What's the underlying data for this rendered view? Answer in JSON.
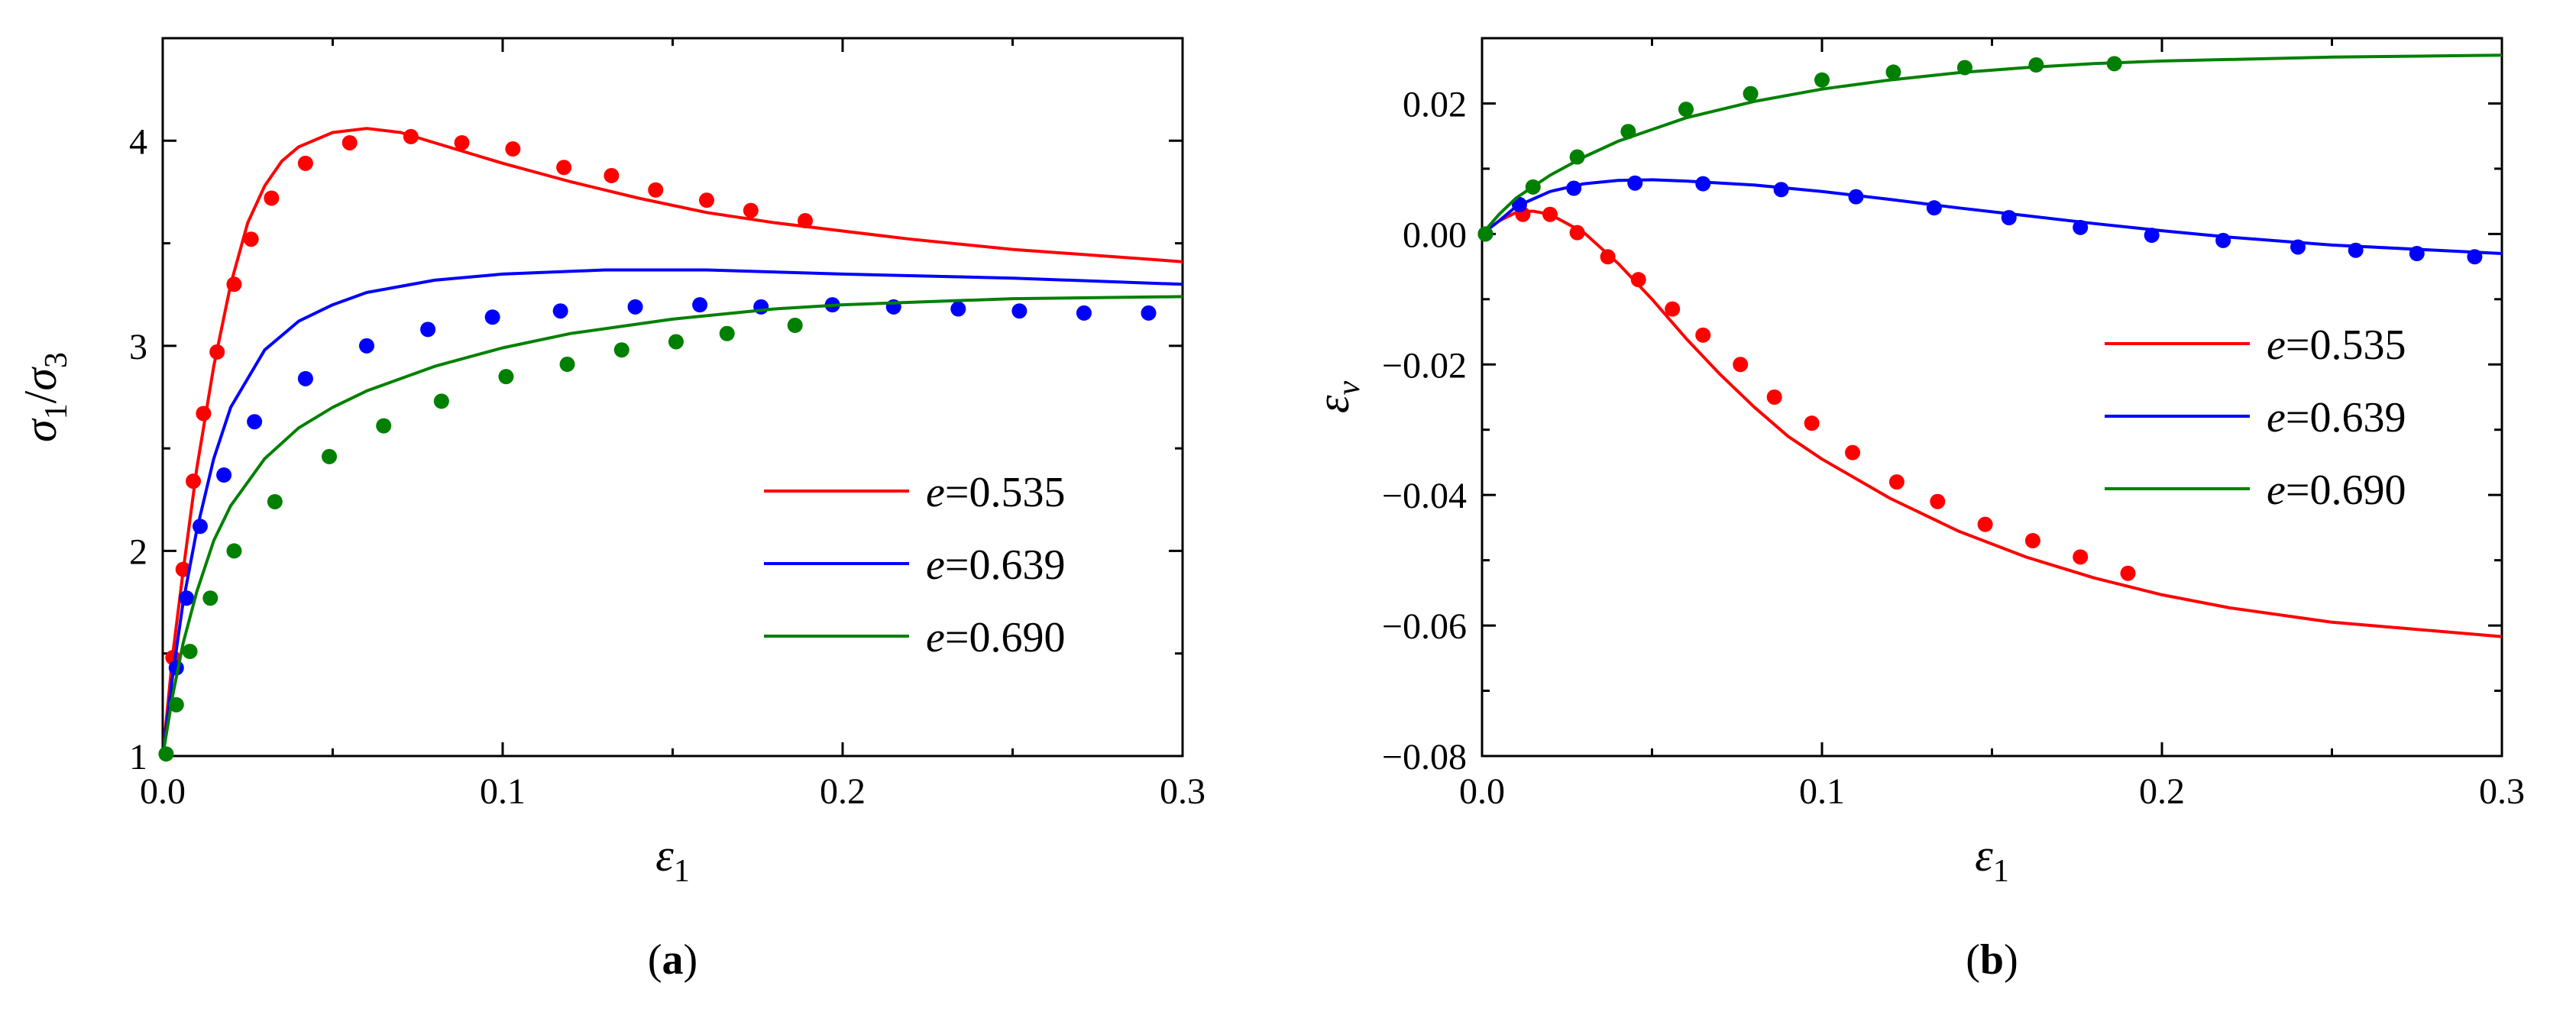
{
  "chart_data": [
    {
      "type": "line",
      "panel_label": "(a)",
      "xlabel": "ε1",
      "ylabel": "σ1/σ3",
      "xlim": [
        0.0,
        0.3
      ],
      "ylim": [
        1,
        4.5
      ],
      "xticks": [
        "0.0",
        "0.1",
        "0.2",
        "0.3"
      ],
      "yticks": [
        "1",
        "2",
        "3",
        "4"
      ],
      "legend_position": "lower-right",
      "series": [
        {
          "name": "e=0.535",
          "e_symbol": "e",
          "e_value": "=0.535",
          "color": "#ff0000",
          "line": [
            [
              0,
              1
            ],
            [
              0.003,
              1.5
            ],
            [
              0.006,
              1.9
            ],
            [
              0.01,
              2.4
            ],
            [
              0.015,
              2.9
            ],
            [
              0.02,
              3.3
            ],
            [
              0.025,
              3.6
            ],
            [
              0.03,
              3.78
            ],
            [
              0.035,
              3.9
            ],
            [
              0.04,
              3.97
            ],
            [
              0.05,
              4.04
            ],
            [
              0.06,
              4.06
            ],
            [
              0.07,
              4.04
            ],
            [
              0.08,
              3.99
            ],
            [
              0.1,
              3.89
            ],
            [
              0.12,
              3.8
            ],
            [
              0.14,
              3.72
            ],
            [
              0.16,
              3.65
            ],
            [
              0.18,
              3.6
            ],
            [
              0.2,
              3.56
            ],
            [
              0.22,
              3.52
            ],
            [
              0.25,
              3.47
            ],
            [
              0.3,
              3.41
            ]
          ],
          "points": [
            [
              0.003,
              1.48
            ],
            [
              0.006,
              1.91
            ],
            [
              0.009,
              2.34
            ],
            [
              0.012,
              2.67
            ],
            [
              0.016,
              2.97
            ],
            [
              0.021,
              3.3
            ],
            [
              0.026,
              3.52
            ],
            [
              0.032,
              3.72
            ],
            [
              0.042,
              3.89
            ],
            [
              0.055,
              3.99
            ],
            [
              0.073,
              4.02
            ],
            [
              0.088,
              3.99
            ],
            [
              0.103,
              3.96
            ],
            [
              0.118,
              3.87
            ],
            [
              0.132,
              3.83
            ],
            [
              0.145,
              3.76
            ],
            [
              0.16,
              3.71
            ],
            [
              0.173,
              3.66
            ],
            [
              0.189,
              3.61
            ]
          ]
        },
        {
          "name": "e=0.639",
          "e_symbol": "e",
          "e_value": "=0.639",
          "color": "#0000ff",
          "line": [
            [
              0,
              1
            ],
            [
              0.003,
              1.4
            ],
            [
              0.006,
              1.75
            ],
            [
              0.01,
              2.1
            ],
            [
              0.015,
              2.45
            ],
            [
              0.02,
              2.7
            ],
            [
              0.03,
              2.98
            ],
            [
              0.04,
              3.12
            ],
            [
              0.05,
              3.2
            ],
            [
              0.06,
              3.26
            ],
            [
              0.08,
              3.32
            ],
            [
              0.1,
              3.35
            ],
            [
              0.13,
              3.37
            ],
            [
              0.16,
              3.37
            ],
            [
              0.2,
              3.35
            ],
            [
              0.25,
              3.33
            ],
            [
              0.3,
              3.3
            ]
          ],
          "points": [
            [
              0.004,
              1.43
            ],
            [
              0.007,
              1.77
            ],
            [
              0.011,
              2.12
            ],
            [
              0.018,
              2.37
            ],
            [
              0.027,
              2.63
            ],
            [
              0.042,
              2.84
            ],
            [
              0.06,
              3.0
            ],
            [
              0.078,
              3.08
            ],
            [
              0.097,
              3.14
            ],
            [
              0.117,
              3.17
            ],
            [
              0.139,
              3.19
            ],
            [
              0.158,
              3.2
            ],
            [
              0.176,
              3.19
            ],
            [
              0.197,
              3.2
            ],
            [
              0.215,
              3.19
            ],
            [
              0.234,
              3.18
            ],
            [
              0.252,
              3.17
            ],
            [
              0.271,
              3.16
            ],
            [
              0.29,
              3.16
            ]
          ]
        },
        {
          "name": "e=0.690",
          "e_symbol": "e",
          "e_value": "=0.690",
          "color": "#008000",
          "line": [
            [
              0,
              1
            ],
            [
              0.003,
              1.3
            ],
            [
              0.006,
              1.55
            ],
            [
              0.01,
              1.8
            ],
            [
              0.015,
              2.05
            ],
            [
              0.02,
              2.22
            ],
            [
              0.03,
              2.45
            ],
            [
              0.04,
              2.6
            ],
            [
              0.05,
              2.7
            ],
            [
              0.06,
              2.78
            ],
            [
              0.08,
              2.9
            ],
            [
              0.1,
              2.99
            ],
            [
              0.12,
              3.06
            ],
            [
              0.15,
              3.13
            ],
            [
              0.18,
              3.18
            ],
            [
              0.2,
              3.2
            ],
            [
              0.25,
              3.23
            ],
            [
              0.3,
              3.24
            ]
          ],
          "points": [
            [
              0.001,
              1.01
            ],
            [
              0.004,
              1.25
            ],
            [
              0.008,
              1.51
            ],
            [
              0.014,
              1.77
            ],
            [
              0.021,
              2.0
            ],
            [
              0.033,
              2.24
            ],
            [
              0.049,
              2.46
            ],
            [
              0.065,
              2.61
            ],
            [
              0.082,
              2.73
            ],
            [
              0.101,
              2.85
            ],
            [
              0.119,
              2.91
            ],
            [
              0.135,
              2.98
            ],
            [
              0.151,
              3.02
            ],
            [
              0.166,
              3.06
            ],
            [
              0.186,
              3.1
            ]
          ]
        }
      ]
    },
    {
      "type": "line",
      "panel_label": "(b)",
      "xlabel": "ε1",
      "ylabel": "εv",
      "xlim": [
        0.0,
        0.3
      ],
      "ylim": [
        -0.08,
        0.03
      ],
      "xticks": [
        "0.0",
        "0.1",
        "0.2",
        "0.3"
      ],
      "yticks": [
        "0.02",
        "0.00",
        "−0.02",
        "−0.04",
        "−0.06",
        "−0.08"
      ],
      "legend_position": "right",
      "series": [
        {
          "name": "e=0.535",
          "e_symbol": "e",
          "e_value": "=0.535",
          "color": "#ff0000",
          "line": [
            [
              0,
              0
            ],
            [
              0.005,
              0.002
            ],
            [
              0.01,
              0.0033
            ],
            [
              0.015,
              0.0035
            ],
            [
              0.02,
              0.003
            ],
            [
              0.03,
              0.0002
            ],
            [
              0.04,
              -0.0045
            ],
            [
              0.05,
              -0.01
            ],
            [
              0.06,
              -0.016
            ],
            [
              0.07,
              -0.0215
            ],
            [
              0.08,
              -0.0265
            ],
            [
              0.09,
              -0.031
            ],
            [
              0.1,
              -0.0345
            ],
            [
              0.12,
              -0.0405
            ],
            [
              0.14,
              -0.0455
            ],
            [
              0.16,
              -0.0495
            ],
            [
              0.18,
              -0.0527
            ],
            [
              0.2,
              -0.0553
            ],
            [
              0.22,
              -0.0573
            ],
            [
              0.25,
              -0.0595
            ],
            [
              0.3,
              -0.0617
            ]
          ],
          "points": [
            [
              0.012,
              0.003
            ],
            [
              0.02,
              0.003
            ],
            [
              0.028,
              0.0002
            ],
            [
              0.037,
              -0.0035
            ],
            [
              0.046,
              -0.007
            ],
            [
              0.056,
              -0.0115
            ],
            [
              0.065,
              -0.0155
            ],
            [
              0.076,
              -0.02
            ],
            [
              0.086,
              -0.025
            ],
            [
              0.097,
              -0.029
            ],
            [
              0.109,
              -0.0335
            ],
            [
              0.122,
              -0.038
            ],
            [
              0.134,
              -0.041
            ],
            [
              0.148,
              -0.0445
            ],
            [
              0.162,
              -0.047
            ],
            [
              0.176,
              -0.0495
            ],
            [
              0.19,
              -0.052
            ]
          ]
        },
        {
          "name": "e=0.639",
          "e_symbol": "e",
          "e_value": "=0.639",
          "color": "#0000ff",
          "line": [
            [
              0,
              0
            ],
            [
              0.005,
              0.002
            ],
            [
              0.01,
              0.0042
            ],
            [
              0.02,
              0.0065
            ],
            [
              0.03,
              0.0077
            ],
            [
              0.04,
              0.0082
            ],
            [
              0.05,
              0.0083
            ],
            [
              0.06,
              0.0081
            ],
            [
              0.08,
              0.0075
            ],
            [
              0.1,
              0.0065
            ],
            [
              0.12,
              0.0053
            ],
            [
              0.14,
              0.004
            ],
            [
              0.16,
              0.0028
            ],
            [
              0.18,
              0.0016
            ],
            [
              0.2,
              0.0005
            ],
            [
              0.22,
              -0.0005
            ],
            [
              0.25,
              -0.0017
            ],
            [
              0.3,
              -0.003
            ]
          ],
          "points": [
            [
              0.001,
              0.0
            ],
            [
              0.011,
              0.0045
            ],
            [
              0.027,
              0.007
            ],
            [
              0.045,
              0.0078
            ],
            [
              0.065,
              0.0077
            ],
            [
              0.088,
              0.0068
            ],
            [
              0.11,
              0.0057
            ],
            [
              0.133,
              0.004
            ],
            [
              0.155,
              0.0025
            ],
            [
              0.176,
              0.001
            ],
            [
              0.197,
              -0.0002
            ],
            [
              0.218,
              -0.001
            ],
            [
              0.24,
              -0.002
            ],
            [
              0.257,
              -0.0025
            ],
            [
              0.275,
              -0.003
            ],
            [
              0.292,
              -0.0035
            ]
          ]
        },
        {
          "name": "e=0.690",
          "e_symbol": "e",
          "e_value": "=0.690",
          "color": "#008000",
          "line": [
            [
              0,
              0
            ],
            [
              0.005,
              0.003
            ],
            [
              0.01,
              0.0055
            ],
            [
              0.02,
              0.009
            ],
            [
              0.03,
              0.0118
            ],
            [
              0.04,
              0.0142
            ],
            [
              0.05,
              0.016
            ],
            [
              0.06,
              0.0178
            ],
            [
              0.08,
              0.0203
            ],
            [
              0.1,
              0.0222
            ],
            [
              0.12,
              0.0236
            ],
            [
              0.14,
              0.0247
            ],
            [
              0.16,
              0.0255
            ],
            [
              0.18,
              0.0261
            ],
            [
              0.2,
              0.0265
            ],
            [
              0.25,
              0.0271
            ],
            [
              0.3,
              0.0274
            ]
          ],
          "points": [
            [
              0.001,
              0.0
            ],
            [
              0.015,
              0.0072
            ],
            [
              0.028,
              0.0118
            ],
            [
              0.043,
              0.0157
            ],
            [
              0.06,
              0.0191
            ],
            [
              0.079,
              0.0215
            ],
            [
              0.1,
              0.0236
            ],
            [
              0.121,
              0.0248
            ],
            [
              0.142,
              0.0255
            ],
            [
              0.163,
              0.0259
            ],
            [
              0.186,
              0.0261
            ]
          ]
        }
      ]
    }
  ]
}
